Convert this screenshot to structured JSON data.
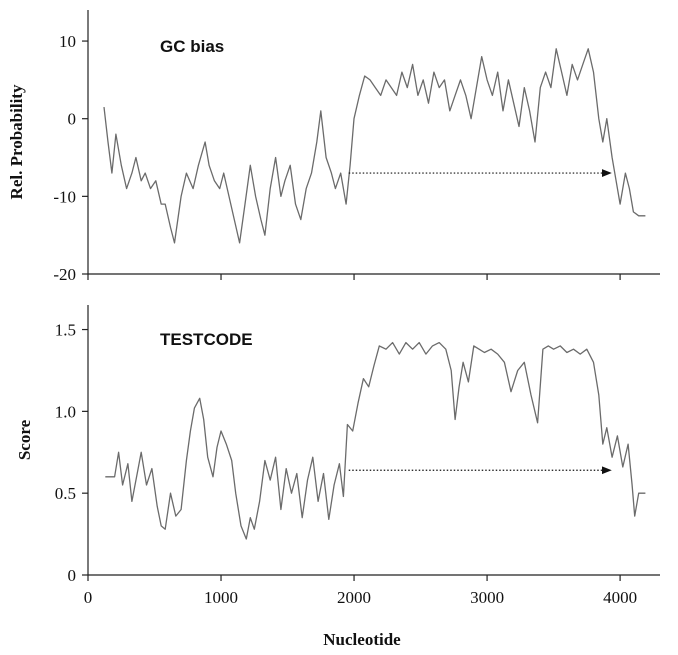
{
  "chart_data": [
    {
      "type": "line",
      "title": "GC bias",
      "xlabel": "",
      "ylabel": "Rel. Probability",
      "xlim": [
        0,
        4300
      ],
      "ylim": [
        -20,
        14
      ],
      "yticks": [
        10,
        0,
        -10,
        -20
      ],
      "yticklabels": [
        "10",
        "0",
        "-10",
        "-20"
      ],
      "grid": false,
      "series": [
        {
          "x": [
            120,
            150,
            180,
            210,
            250,
            290,
            330,
            360,
            400,
            430,
            470,
            510,
            550,
            580,
            620,
            650,
            700,
            740,
            790,
            830,
            880,
            910,
            950,
            990,
            1020,
            1060,
            1100,
            1140,
            1180,
            1220,
            1260,
            1300,
            1330,
            1370,
            1410,
            1450,
            1480,
            1520,
            1560,
            1600,
            1640,
            1680,
            1720,
            1750,
            1790,
            1830,
            1860,
            1900,
            1940,
            1970,
            2000,
            2040,
            2080,
            2120,
            2160,
            2200,
            2240,
            2280,
            2320,
            2360,
            2400,
            2440,
            2480,
            2520,
            2560,
            2600,
            2640,
            2680,
            2720,
            2760,
            2800,
            2840,
            2880,
            2920,
            2960,
            3000,
            3040,
            3080,
            3120,
            3160,
            3200,
            3240,
            3280,
            3320,
            3360,
            3400,
            3440,
            3480,
            3520,
            3560,
            3600,
            3640,
            3680,
            3720,
            3760,
            3800,
            3840,
            3870,
            3900,
            3940,
            3970,
            4000,
            4040,
            4070,
            4100,
            4140,
            4190
          ],
          "values": [
            1.5,
            -3,
            -7,
            -2,
            -6,
            -9,
            -7,
            -5,
            -8,
            -7,
            -9,
            -8,
            -11,
            -11,
            -14,
            -16,
            -10,
            -7,
            -9,
            -6,
            -3,
            -6,
            -8,
            -9,
            -7,
            -10,
            -13,
            -16,
            -11,
            -6,
            -10,
            -13,
            -15,
            -9,
            -5,
            -10,
            -8,
            -6,
            -11,
            -13,
            -9,
            -7,
            -3,
            1,
            -5,
            -7,
            -9,
            -7,
            -11,
            -6,
            0,
            3,
            5.5,
            5,
            4,
            3,
            5,
            4,
            3,
            6,
            4,
            7,
            3,
            5,
            2,
            6,
            4,
            5,
            1,
            3,
            5,
            3,
            0,
            4,
            8,
            5,
            3,
            6,
            1,
            5,
            2,
            -1,
            4,
            1,
            -3,
            4,
            6,
            4,
            9,
            6,
            3,
            7,
            5,
            7,
            9,
            6,
            0,
            -3,
            0,
            -5,
            -8,
            -11,
            -7,
            -9,
            -12,
            -12.5,
            -12.5
          ]
        }
      ],
      "annotations": [
        {
          "type": "arrow",
          "x_start": 1960,
          "x_end": 3930,
          "y": -7
        }
      ]
    },
    {
      "type": "line",
      "title": "TESTCODE",
      "xlabel": "Nucleotide",
      "ylabel": "Score",
      "xlim": [
        0,
        4300
      ],
      "ylim": [
        0,
        1.65
      ],
      "xticks": [
        0,
        1000,
        2000,
        3000,
        4000
      ],
      "xticklabels": [
        "0",
        "1000",
        "2000",
        "3000",
        "4000"
      ],
      "yticks": [
        1.5,
        1.0,
        0.5,
        0
      ],
      "yticklabels": [
        "1.5",
        "1.0",
        "0.5",
        "0"
      ],
      "grid": false,
      "series": [
        {
          "x": [
            130,
            200,
            230,
            260,
            300,
            330,
            370,
            400,
            440,
            480,
            520,
            550,
            580,
            620,
            660,
            700,
            740,
            770,
            800,
            840,
            870,
            900,
            940,
            970,
            1000,
            1040,
            1080,
            1110,
            1150,
            1190,
            1220,
            1250,
            1290,
            1330,
            1370,
            1410,
            1450,
            1490,
            1530,
            1570,
            1610,
            1650,
            1690,
            1730,
            1770,
            1810,
            1850,
            1890,
            1920,
            1950,
            1990,
            2030,
            2070,
            2110,
            2150,
            2190,
            2240,
            2290,
            2340,
            2390,
            2440,
            2490,
            2540,
            2590,
            2640,
            2690,
            2730,
            2760,
            2790,
            2820,
            2860,
            2900,
            2940,
            2980,
            3030,
            3080,
            3130,
            3180,
            3230,
            3280,
            3330,
            3380,
            3420,
            3460,
            3500,
            3550,
            3600,
            3650,
            3700,
            3750,
            3800,
            3840,
            3870,
            3900,
            3940,
            3980,
            4020,
            4060,
            4090,
            4110,
            4140,
            4190
          ],
          "values": [
            0.6,
            0.6,
            0.75,
            0.55,
            0.68,
            0.45,
            0.62,
            0.75,
            0.55,
            0.65,
            0.42,
            0.3,
            0.28,
            0.5,
            0.36,
            0.4,
            0.7,
            0.88,
            1.02,
            1.08,
            0.95,
            0.72,
            0.6,
            0.78,
            0.88,
            0.8,
            0.7,
            0.5,
            0.3,
            0.22,
            0.35,
            0.28,
            0.45,
            0.7,
            0.58,
            0.72,
            0.4,
            0.65,
            0.5,
            0.62,
            0.35,
            0.58,
            0.72,
            0.45,
            0.62,
            0.34,
            0.55,
            0.68,
            0.48,
            0.92,
            0.88,
            1.05,
            1.2,
            1.15,
            1.28,
            1.4,
            1.38,
            1.42,
            1.35,
            1.42,
            1.38,
            1.42,
            1.35,
            1.4,
            1.42,
            1.38,
            1.25,
            0.95,
            1.15,
            1.3,
            1.18,
            1.4,
            1.38,
            1.36,
            1.38,
            1.35,
            1.3,
            1.12,
            1.25,
            1.3,
            1.1,
            0.93,
            1.38,
            1.4,
            1.38,
            1.4,
            1.36,
            1.38,
            1.35,
            1.38,
            1.3,
            1.1,
            0.8,
            0.9,
            0.72,
            0.85,
            0.66,
            0.8,
            0.55,
            0.36,
            0.5,
            0.5
          ]
        }
      ],
      "annotations": [
        {
          "type": "arrow",
          "x_start": 1960,
          "x_end": 3930,
          "y": 0.64
        }
      ]
    }
  ]
}
